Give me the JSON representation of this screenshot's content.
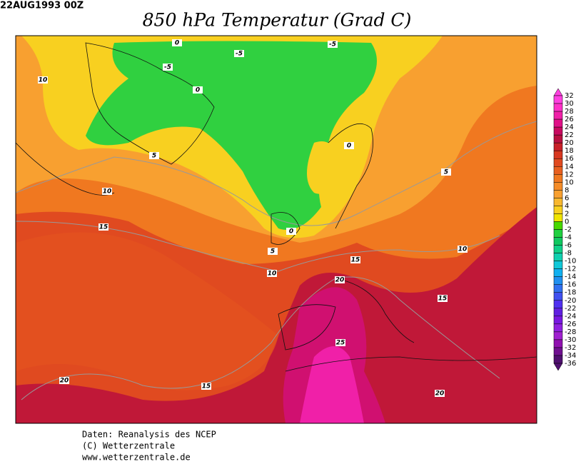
{
  "header": {
    "date": "22AUG1993 00Z",
    "title": "850 hPa Temperatur (Grad C)"
  },
  "map": {
    "contour_labels": [
      "10",
      "-5",
      "0",
      "-5",
      "-5",
      "0",
      "5",
      "10",
      "15",
      "0",
      "5",
      "10",
      "5",
      "15",
      "20",
      "10",
      "25",
      "15",
      "20",
      "15",
      "20",
      "0"
    ]
  },
  "colorbar": {
    "labels": [
      32,
      30,
      28,
      26,
      24,
      22,
      20,
      18,
      16,
      14,
      12,
      10,
      8,
      6,
      4,
      2,
      0,
      -2,
      -4,
      -6,
      -8,
      -10,
      -12,
      -14,
      -16,
      -18,
      -20,
      -22,
      -24,
      -26,
      -28,
      -30,
      -32,
      -34,
      -36
    ],
    "colors": [
      "#ff40e0",
      "#ff30c8",
      "#f020a8",
      "#e01088",
      "#c80a60",
      "#b81040",
      "#c82028",
      "#d83820",
      "#e04a20",
      "#e86020",
      "#f07820",
      "#f58c28",
      "#f8a030",
      "#f8b830",
      "#f8d020",
      "#f0e400",
      "#48d800",
      "#20d040",
      "#10c860",
      "#10d088",
      "#10d0b0",
      "#10c8d8",
      "#10b0f0",
      "#2090f0",
      "#3070f0",
      "#4050f0",
      "#5030f0",
      "#6020e0",
      "#7818e0",
      "#9020e0",
      "#a020d0",
      "#9010b0",
      "#701090",
      "#501070"
    ]
  },
  "footer": {
    "lines": [
      "Daten: Reanalysis des NCEP",
      "(C) Wetterzentrale",
      "www.wetterzentrale.de"
    ]
  }
}
